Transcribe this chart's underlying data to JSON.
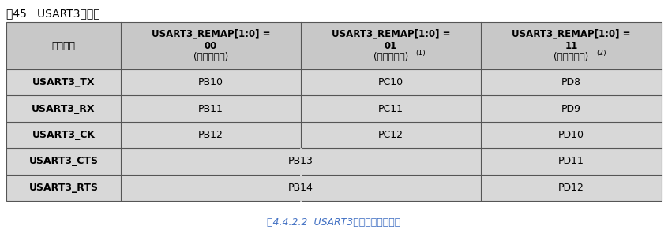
{
  "title": "表45   USART3重映像",
  "caption": "图4.4.2.2  USART3重映射管脚对应表",
  "header_bg": "#c8c8c8",
  "row_bg": "#d8d8d8",
  "border_color": "#555555",
  "title_color": "#000000",
  "caption_color": "#4472c4",
  "col_headers_lines": [
    [
      "复用功能"
    ],
    [
      "USART3_REMAP[1:0] =",
      "00",
      "(没有重映像)"
    ],
    [
      "USART3_REMAP[1:0] =",
      "01",
      "(部分重映像)"
    ],
    [
      "USART3_REMAP[1:0] =",
      "11",
      "(完全重映像)"
    ]
  ],
  "header_superscripts": [
    "",
    "",
    "(1)",
    "(2)"
  ],
  "rows": [
    [
      "USART3_TX",
      "PB10",
      "PC10",
      "PD8"
    ],
    [
      "USART3_RX",
      "PB11",
      "PC11",
      "PD9"
    ],
    [
      "USART3_CK",
      "PB12",
      "PC12",
      "PD10"
    ],
    [
      "USART3_CTS",
      "PB13",
      "",
      "PD11"
    ],
    [
      "USART3_RTS",
      "PB14",
      "",
      "PD12"
    ]
  ],
  "merged_rows": [
    3,
    4
  ],
  "fig_width": 8.46,
  "fig_height": 3.01
}
